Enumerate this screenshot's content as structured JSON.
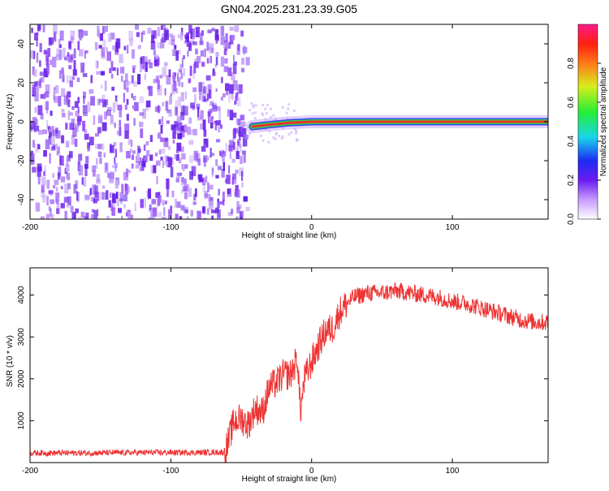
{
  "title": "GN04.2025.231.23.39.G05",
  "colors": {
    "snr_line": "#ee3333",
    "spectrogram_noise": "#7a2df0",
    "ridge_core": "#e8332a",
    "ridge_glow": "#2fd04a",
    "axis": "#000000",
    "background": "#ffffff"
  },
  "chart_data": [
    {
      "type": "heatmap",
      "title": "GN04.2025.231.23.39.G05",
      "xlabel": "Height of straight line (km)",
      "ylabel": "Frequency (Hz)",
      "xlim": [
        -200,
        168
      ],
      "ylim": [
        -50,
        50
      ],
      "xticks": [
        -200,
        -100,
        0,
        100
      ],
      "yticks": [
        -40,
        -20,
        0,
        20,
        40
      ],
      "colorbar": {
        "label": "Normalized spectral amplitude",
        "range": [
          0,
          1
        ],
        "ticks": [
          "0.0",
          "0.2",
          "0.4",
          "0.6",
          "0.8"
        ],
        "colormap": "rainbow (white-violet-blue-cyan-green-yellow-red-magenta)"
      },
      "regions": [
        {
          "x_range": [
            -200,
            -45
          ],
          "frequency_range": [
            -50,
            50
          ],
          "amplitude": "0.0-0.3 broadband noise"
        },
        {
          "x_range": [
            -45,
            168
          ],
          "frequency_hz": 0,
          "amplitude": "0.8-1.0 narrow ridge"
        }
      ],
      "ridge": [
        {
          "x": -42,
          "y": -2.5
        },
        {
          "x": -30,
          "y": -1.5
        },
        {
          "x": -15,
          "y": -0.5
        },
        {
          "x": 0,
          "y": 0
        },
        {
          "x": 50,
          "y": 0
        },
        {
          "x": 100,
          "y": 0
        },
        {
          "x": 168,
          "y": 0
        }
      ]
    },
    {
      "type": "line",
      "title": "",
      "xlabel": "Height of straight line (km)",
      "ylabel": "SNR (10 * v/v)",
      "xlim": [
        -200,
        168
      ],
      "ylim": [
        0,
        4650
      ],
      "xticks": [
        -200,
        -100,
        0,
        100
      ],
      "yticks": [
        1000,
        2000,
        3000,
        4000
      ],
      "series": [
        {
          "x": [
            -200,
            -160,
            -120,
            -80,
            -62,
            -60,
            -55,
            -50,
            -45,
            -40,
            -35,
            -30,
            -25,
            -20,
            -15,
            -10,
            -8,
            -5,
            0,
            5,
            10,
            15,
            20,
            25,
            30,
            40,
            50,
            60,
            70,
            80,
            90,
            100,
            110,
            120,
            130,
            140,
            150,
            160,
            168
          ],
          "y": [
            230,
            230,
            240,
            240,
            250,
            400,
            1000,
            1050,
            900,
            1300,
            1200,
            1800,
            1900,
            2100,
            2100,
            2500,
            1200,
            2000,
            2400,
            2800,
            3150,
            3200,
            3600,
            3800,
            3950,
            4050,
            4050,
            4100,
            4050,
            4000,
            3950,
            3850,
            3800,
            3700,
            3600,
            3500,
            3400,
            3350,
            3350
          ]
        }
      ]
    }
  ]
}
